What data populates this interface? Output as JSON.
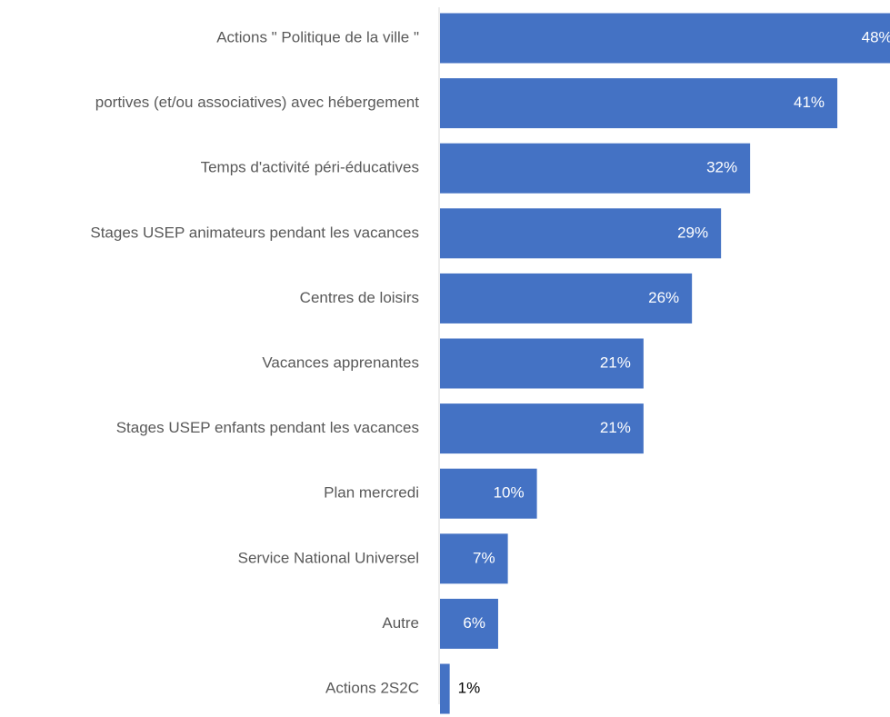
{
  "chart_data": {
    "type": "bar",
    "orientation": "horizontal",
    "categories": [
      "Actions \" Politique de la ville \"",
      "portives (et/ou associatives) avec hébergement",
      "Temps d'activité péri-éducatives",
      "Stages USEP animateurs pendant les vacances",
      "Centres de loisirs",
      "Vacances apprenantes",
      "Stages USEP enfants pendant les vacances",
      "Plan mercredi",
      "Service National Universel",
      "Autre",
      "Actions 2S2C"
    ],
    "values": [
      48,
      41,
      32,
      29,
      26,
      21,
      21,
      10,
      7,
      6,
      1
    ],
    "value_labels": [
      "48%",
      "41%",
      "32%",
      "29%",
      "26%",
      "21%",
      "21%",
      "10%",
      "7%",
      "6%",
      "1%"
    ],
    "color": "#4472c4"
  }
}
